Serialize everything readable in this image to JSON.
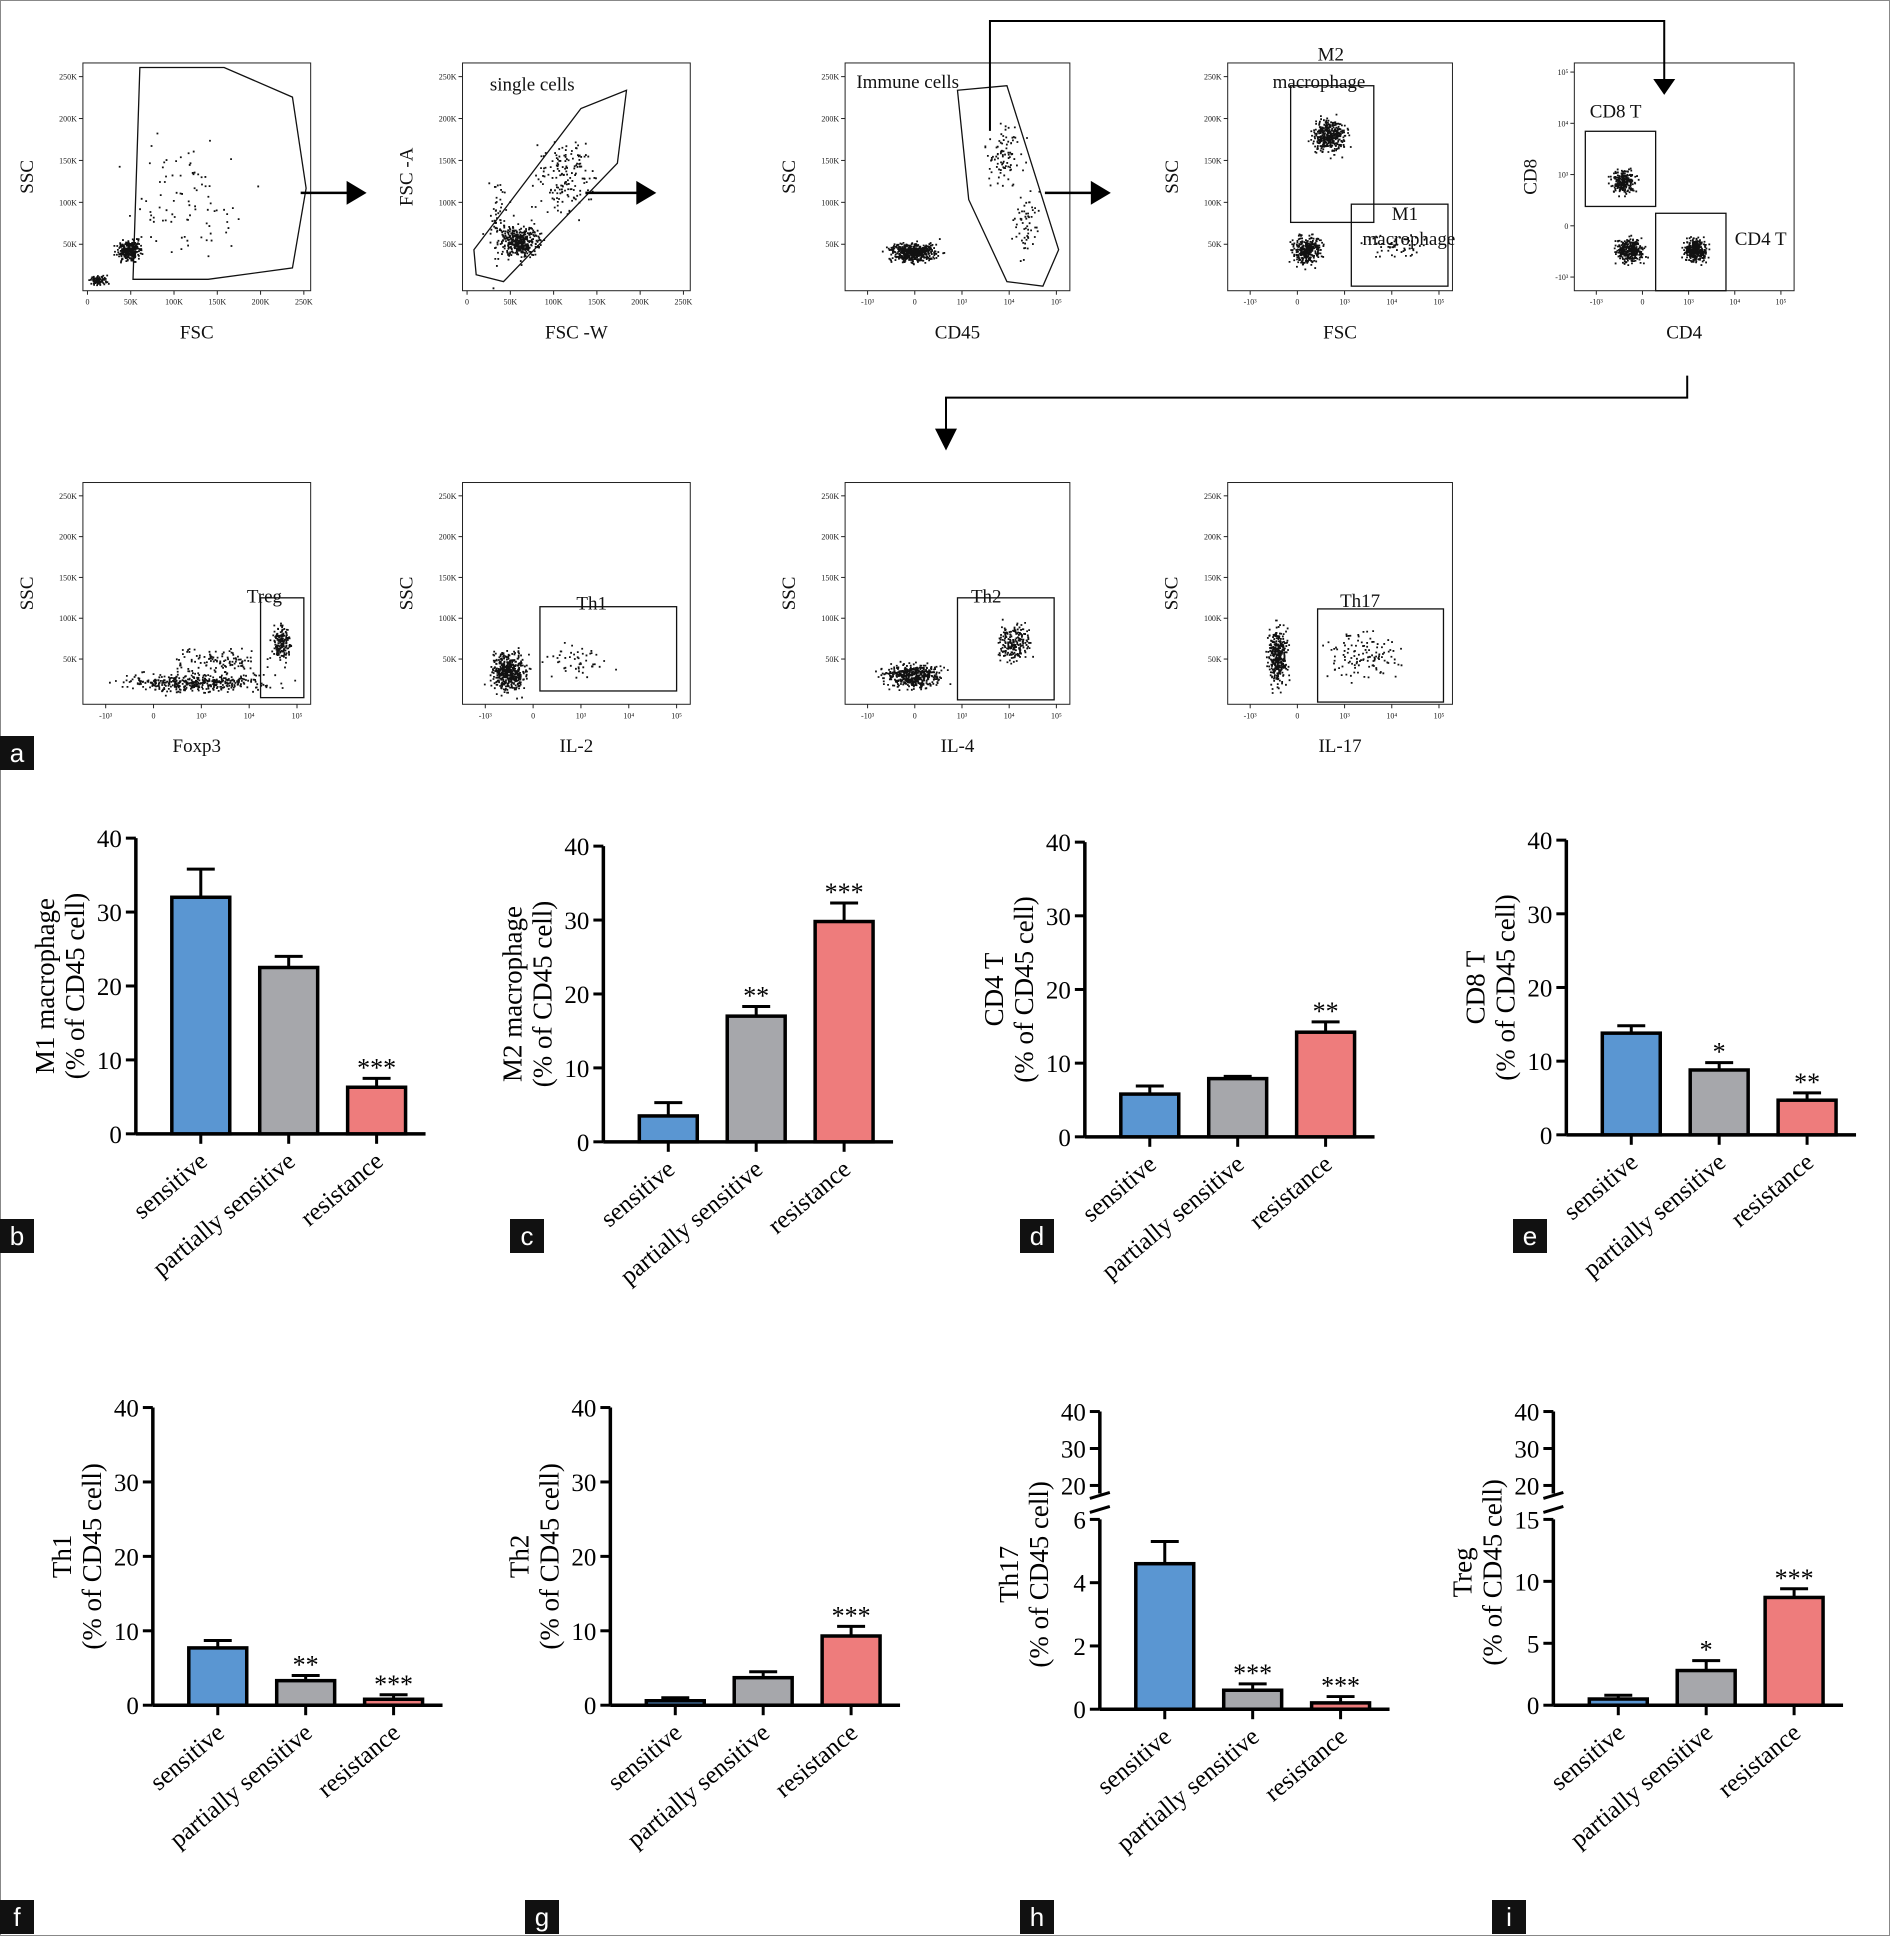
{
  "colors": {
    "sensitive": "#5a96d2",
    "partially_sensitive": "#a6a7ab",
    "resistance": "#ee7c7c",
    "dots": "#111111"
  },
  "flow": {
    "panel_label": "a",
    "linear_ticks": [
      "0",
      "50K",
      "100K",
      "150K",
      "200K",
      "250K"
    ],
    "log_ticks": [
      "-10³",
      "0",
      "10³",
      "10⁴",
      "10⁵"
    ],
    "cd8_ticks": [
      "10⁵",
      "10⁴",
      "10³",
      "0",
      "-10³"
    ],
    "plots": [
      {
        "id": "fsc-ssc",
        "xlabel": "FSC",
        "ylabel": "SSC",
        "xscale": "linear",
        "gate_labels": []
      },
      {
        "id": "singlets",
        "xlabel": "FSC -W",
        "ylabel": "FSC -A",
        "xscale": "linear",
        "gate_labels": [
          "single cells"
        ]
      },
      {
        "id": "cd45",
        "xlabel": "CD45",
        "ylabel": "SSC",
        "xscale": "log",
        "gate_labels": [
          "Immune cells"
        ]
      },
      {
        "id": "macrophage",
        "xlabel": "FSC",
        "ylabel": "SSC",
        "xscale": "log",
        "gate_labels": [
          "M2",
          "macrophage",
          "M1",
          "macrophage"
        ]
      },
      {
        "id": "cd4-cd8",
        "xlabel": "CD4",
        "ylabel": "CD8",
        "xscale": "log",
        "gate_labels": [
          "CD8 T",
          "CD4 T"
        ]
      },
      {
        "id": "foxp3",
        "xlabel": "Foxp3",
        "ylabel": "SSC",
        "xscale": "log",
        "gate_labels": [
          "Treg"
        ]
      },
      {
        "id": "il2",
        "xlabel": "IL-2",
        "ylabel": "SSC",
        "xscale": "log",
        "gate_labels": [
          "Th1"
        ]
      },
      {
        "id": "il4",
        "xlabel": "IL-4",
        "ylabel": "SSC",
        "xscale": "log",
        "gate_labels": [
          "Th2"
        ]
      },
      {
        "id": "il17",
        "xlabel": "IL-17",
        "ylabel": "SSC",
        "xscale": "log",
        "gate_labels": [
          "Th17"
        ]
      }
    ]
  },
  "chart_data": [
    {
      "panel": "b",
      "type": "bar",
      "ylabel": [
        "M1 macrophage",
        "(% of CD45 cell)"
      ],
      "categories": [
        "sensitive",
        "partially sensitive",
        "resistance"
      ],
      "values": [
        32,
        22.5,
        6.3
      ],
      "errors": [
        3.8,
        1.5,
        1.2
      ],
      "significance": [
        "",
        "",
        "***"
      ],
      "yticks": [
        "0",
        "10",
        "20",
        "30",
        "40"
      ],
      "ylim": [
        0,
        40
      ]
    },
    {
      "panel": "c",
      "type": "bar",
      "ylabel": [
        "M2 macrophage",
        "(% of CD45 cell)"
      ],
      "categories": [
        "sensitive",
        "partially sensitive",
        "resistance"
      ],
      "values": [
        3.5,
        17,
        29.8
      ],
      "errors": [
        1.8,
        1.3,
        2.5
      ],
      "significance": [
        "",
        "**",
        "***"
      ],
      "yticks": [
        "0",
        "10",
        "20",
        "30",
        "40"
      ],
      "ylim": [
        0,
        40
      ]
    },
    {
      "panel": "d",
      "type": "bar",
      "ylabel": [
        "CD4 T",
        "(% of CD45 cell)"
      ],
      "categories": [
        "sensitive",
        "partially sensitive",
        "resistance"
      ],
      "values": [
        5.8,
        7.9,
        14.2
      ],
      "errors": [
        1.1,
        0.3,
        1.4
      ],
      "significance": [
        "",
        "",
        "**"
      ],
      "yticks": [
        "0",
        "10",
        "20",
        "30",
        "40"
      ],
      "ylim": [
        0,
        40
      ]
    },
    {
      "panel": "e",
      "type": "bar",
      "ylabel": [
        "CD8 T",
        "(% of CD45 cell)"
      ],
      "categories": [
        "sensitive",
        "partially sensitive",
        "resistance"
      ],
      "values": [
        13.8,
        8.8,
        4.7
      ],
      "errors": [
        1.0,
        1.0,
        1.0
      ],
      "significance": [
        "",
        "*",
        "**"
      ],
      "yticks": [
        "0",
        "10",
        "20",
        "30",
        "40"
      ],
      "ylim": [
        0,
        40
      ]
    },
    {
      "panel": "f",
      "type": "bar",
      "ylabel": [
        "Th1",
        "(% of CD45 cell)"
      ],
      "categories": [
        "sensitive",
        "partially sensitive",
        "resistance"
      ],
      "values": [
        7.7,
        3.3,
        0.8
      ],
      "errors": [
        1.0,
        0.7,
        0.6
      ],
      "significance": [
        "",
        "**",
        "***"
      ],
      "yticks": [
        "0",
        "10",
        "20",
        "30",
        "40"
      ],
      "ylim": [
        0,
        40
      ]
    },
    {
      "panel": "g",
      "type": "bar",
      "ylabel": [
        "Th2",
        "(% of CD45 cell)"
      ],
      "categories": [
        "sensitive",
        "partially sensitive",
        "resistance"
      ],
      "values": [
        0.6,
        3.7,
        9.3
      ],
      "errors": [
        0.4,
        0.8,
        1.3
      ],
      "significance": [
        "",
        "",
        "***"
      ],
      "yticks": [
        "0",
        "10",
        "20",
        "30",
        "40"
      ],
      "ylim": [
        0,
        40
      ]
    },
    {
      "panel": "h",
      "type": "bar",
      "ylabel": [
        "Th17",
        "(% of CD45 cell)"
      ],
      "categories": [
        "sensitive",
        "partially sensitive",
        "resistance"
      ],
      "values": [
        4.6,
        0.6,
        0.2
      ],
      "errors": [
        0.7,
        0.2,
        0.2
      ],
      "significance": [
        "",
        "***",
        "***"
      ],
      "yticks": [
        "0",
        "2",
        "4",
        "6"
      ],
      "ylim": [
        0,
        6
      ],
      "upper_yticks": [
        "20",
        "30",
        "40"
      ],
      "broken_axis": true
    },
    {
      "panel": "i",
      "type": "bar",
      "ylabel": [
        "Treg",
        "(% of CD45 cell)"
      ],
      "categories": [
        "sensitive",
        "partially sensitive",
        "resistance"
      ],
      "values": [
        0.5,
        2.8,
        8.7
      ],
      "errors": [
        0.3,
        0.8,
        0.7
      ],
      "significance": [
        "",
        "*",
        "***"
      ],
      "yticks": [
        "0",
        "5",
        "10",
        "15"
      ],
      "ylim": [
        0,
        15
      ],
      "upper_yticks": [
        "20",
        "30",
        "40"
      ],
      "broken_axis": true
    }
  ]
}
